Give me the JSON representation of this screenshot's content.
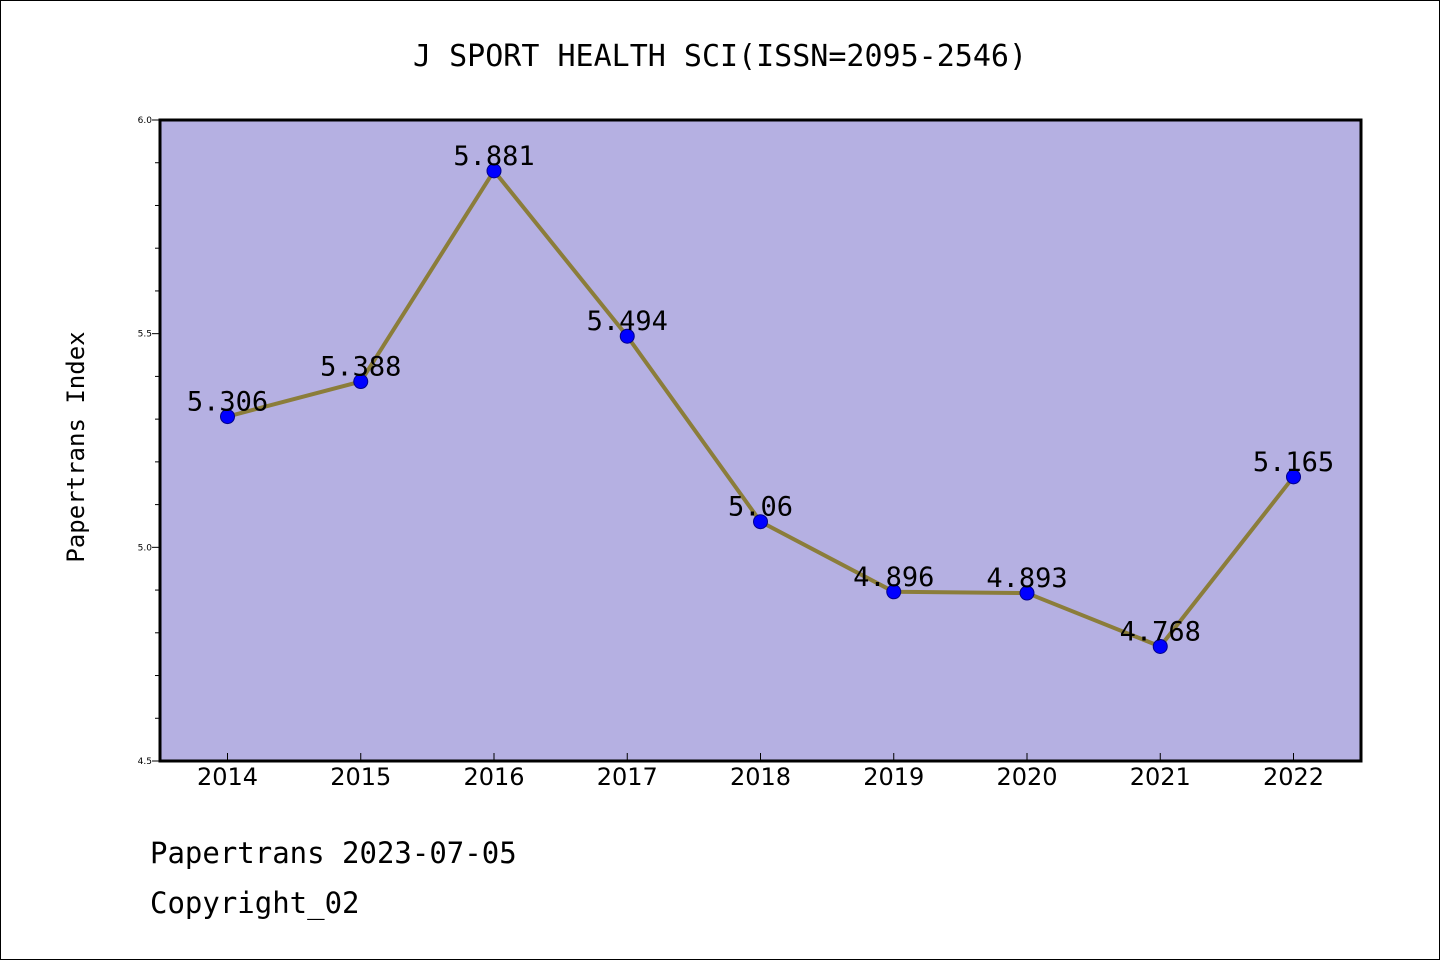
{
  "chart_data": {
    "type": "line",
    "title": "J SPORT HEALTH SCI(ISSN=2095-2546)",
    "ylabel": "Papertrans Index",
    "xlabel": "",
    "categories": [
      "2014",
      "2015",
      "2016",
      "2017",
      "2018",
      "2019",
      "2020",
      "2021",
      "2022"
    ],
    "values": [
      5.306,
      5.388,
      5.881,
      5.494,
      5.06,
      4.896,
      4.893,
      4.768,
      5.165
    ],
    "data_labels": [
      "5.306",
      "5.388",
      "5.881",
      "5.494",
      "5.06",
      "4.896",
      "4.893",
      "4.768",
      "5.165"
    ],
    "ylim": [
      4.5,
      6.0
    ],
    "yticks": [
      "4.5",
      "5.0",
      "5.5",
      "6.0"
    ],
    "grid": false,
    "colors": {
      "plot_background": "#b5b0e2",
      "line": "#8b7d3a",
      "marker": "#0000ff"
    }
  },
  "footer": {
    "date_line": "Papertrans 2023-07-05",
    "copyright_line": "Copyright_02"
  }
}
